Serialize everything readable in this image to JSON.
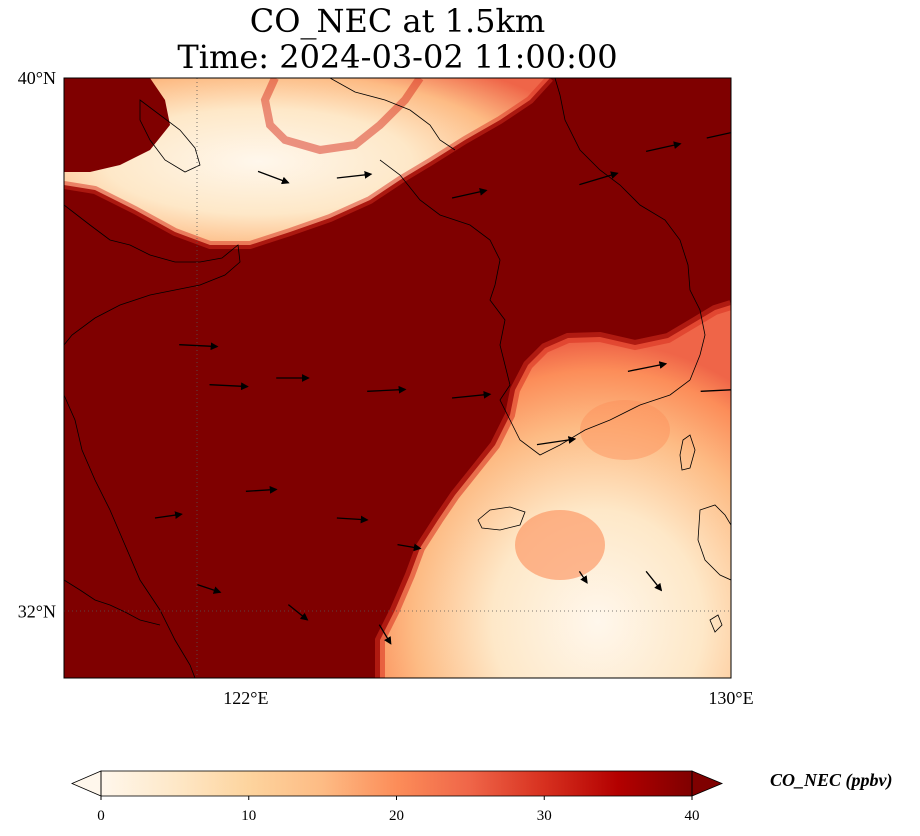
{
  "title_line1": "CO_NEC at 1.5km",
  "title_line2": "Time: 2024-03-02 11:00:00",
  "colorbar_label": "CO_NEC (ppbv)",
  "chart_data": {
    "type": "heatmap",
    "variable": "CO_NEC",
    "units": "ppbv",
    "level": "1.5km",
    "time": "2024-03-02 11:00:00",
    "xlim": [
      119.0,
      130.0
    ],
    "ylim": [
      31.0,
      40.0
    ],
    "x_ticks": [
      {
        "value": 122,
        "label": "122°E"
      },
      {
        "value": 130,
        "label": "130°E"
      }
    ],
    "y_ticks": [
      {
        "value": 40,
        "label": "40°N"
      },
      {
        "value": 32,
        "label": "32°N"
      }
    ],
    "gridlines": {
      "lon": [
        122
      ],
      "lat": [
        32
      ],
      "style": "dotted"
    },
    "colormap": "OrRd",
    "colorbar": {
      "min": 0,
      "max": 40,
      "ticks": [
        0,
        10,
        20,
        30,
        40
      ],
      "extend": "both",
      "orientation": "horizontal"
    },
    "colors": {
      "saturated": "#7f0000",
      "low": "#fff7ec",
      "mid": "#fdbb84",
      "high": "#d7301f"
    },
    "low_regions": [
      {
        "name": "northern plume",
        "approx_value": "0-20",
        "extent_lon": [
          119.0,
          127.0
        ],
        "extent_lat": [
          36.5,
          40.0
        ]
      },
      {
        "name": "southeastern plume",
        "approx_value": "0-25",
        "extent_lon": [
          124.5,
          130.0
        ],
        "extent_lat": [
          31.0,
          35.5
        ]
      }
    ],
    "background_value": "40+",
    "wind_vectors": [
      {
        "lon": 120.9,
        "lat": 36.0,
        "u": 1.0,
        "v": -0.05
      },
      {
        "lon": 121.4,
        "lat": 35.4,
        "u": 1.0,
        "v": -0.05
      },
      {
        "lon": 122.5,
        "lat": 35.5,
        "u": 0.85,
        "v": 0.0
      },
      {
        "lon": 124.0,
        "lat": 35.3,
        "u": 1.0,
        "v": 0.05
      },
      {
        "lon": 125.4,
        "lat": 35.2,
        "u": 1.0,
        "v": 0.1
      },
      {
        "lon": 126.8,
        "lat": 34.5,
        "u": 1.0,
        "v": 0.15
      },
      {
        "lon": 128.3,
        "lat": 35.6,
        "u": 1.0,
        "v": 0.2
      },
      {
        "lon": 129.5,
        "lat": 35.3,
        "u": 1.0,
        "v": 0.05
      },
      {
        "lon": 120.5,
        "lat": 33.4,
        "u": 0.7,
        "v": 0.1
      },
      {
        "lon": 122.0,
        "lat": 33.8,
        "u": 0.8,
        "v": 0.05
      },
      {
        "lon": 123.5,
        "lat": 33.4,
        "u": 0.8,
        "v": -0.05
      },
      {
        "lon": 124.5,
        "lat": 33.0,
        "u": 0.6,
        "v": -0.1
      },
      {
        "lon": 121.2,
        "lat": 32.4,
        "u": 0.6,
        "v": -0.2
      },
      {
        "lon": 122.7,
        "lat": 32.1,
        "u": 0.5,
        "v": -0.4
      },
      {
        "lon": 124.2,
        "lat": 31.8,
        "u": 0.3,
        "v": -0.5
      },
      {
        "lon": 127.5,
        "lat": 32.6,
        "u": 0.2,
        "v": -0.3
      },
      {
        "lon": 128.6,
        "lat": 32.6,
        "u": 0.4,
        "v": -0.5
      },
      {
        "lon": 122.2,
        "lat": 38.6,
        "u": 0.8,
        "v": -0.3
      },
      {
        "lon": 123.5,
        "lat": 38.5,
        "u": 0.9,
        "v": 0.1
      },
      {
        "lon": 125.4,
        "lat": 38.2,
        "u": 0.9,
        "v": 0.2
      },
      {
        "lon": 127.5,
        "lat": 38.4,
        "u": 1.0,
        "v": 0.3
      },
      {
        "lon": 128.6,
        "lat": 38.9,
        "u": 0.9,
        "v": 0.2
      },
      {
        "lon": 129.6,
        "lat": 39.1,
        "u": 0.9,
        "v": 0.2
      }
    ]
  }
}
